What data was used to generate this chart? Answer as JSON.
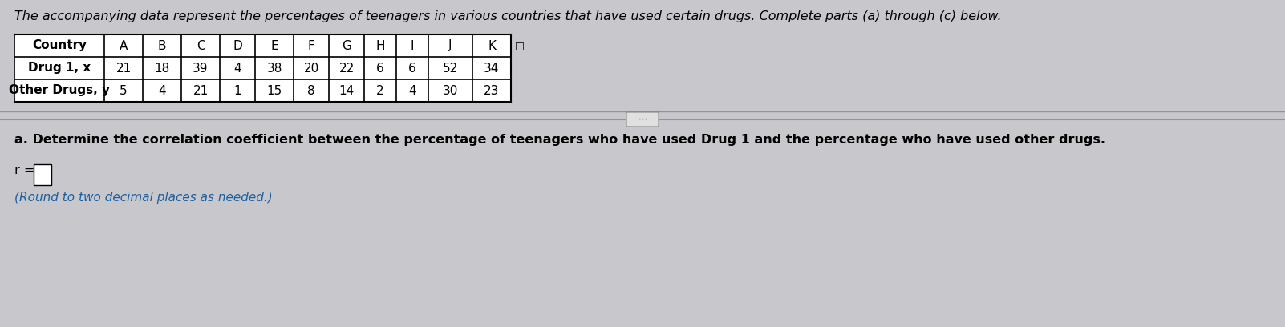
{
  "intro_text": "The accompanying data represent the percentages of teenagers in various countries that have used certain drugs. Complete parts (a) through (c) below.",
  "table": {
    "headers": [
      "Country",
      "A",
      "B",
      "C",
      "D",
      "E",
      "F",
      "G",
      "H",
      "I",
      "J",
      "K"
    ],
    "row1_label": "Drug 1, x",
    "row1_values": [
      21,
      18,
      39,
      4,
      38,
      20,
      22,
      6,
      6,
      52,
      34
    ],
    "row2_label": "Other Drugs, y",
    "row2_values": [
      5,
      4,
      21,
      1,
      15,
      8,
      14,
      2,
      4,
      30,
      23
    ]
  },
  "part_a_text": "a. Determine the correlation coefficient between the percentage of teenagers who have used Drug 1 and the percentage who have used other drugs.",
  "r_label": "r =",
  "round_note": "(Round to two decimal places as needed.)",
  "bg_color": "#c8c8cc",
  "table_bg": "#ffffff",
  "text_color": "#000000",
  "blue_text_color": "#1a5fa0",
  "intro_fontsize": 11.5,
  "table_fontsize": 11.0,
  "body_fontsize": 11.5,
  "small_fontsize": 11.0
}
